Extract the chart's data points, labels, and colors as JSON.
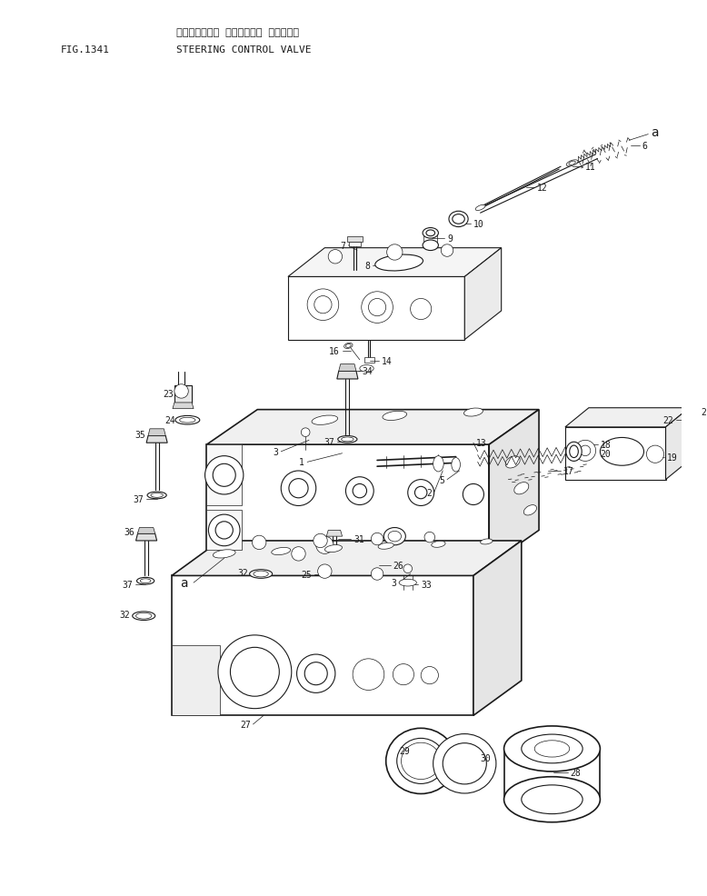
{
  "title_japanese": "ステアリング゚ コントロール パルプ",
  "title_english": "STEERING CONTROL VALVE",
  "fig_label": "FIG.1341",
  "bg_color": "#ffffff",
  "line_color": "#1a1a1a",
  "fig_width": 7.78,
  "fig_height": 9.87,
  "dpi": 100
}
